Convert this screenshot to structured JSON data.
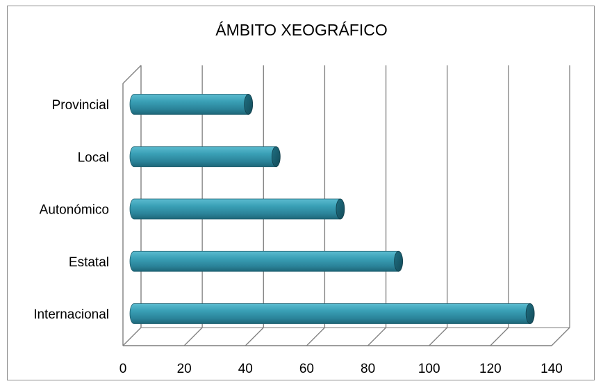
{
  "chart_data": {
    "type": "bar",
    "orientation": "horizontal",
    "style": "3d-cylinder",
    "title": "ÁMBITO XEOGRÁFICO",
    "xlabel": "",
    "ylabel": "",
    "categories": [
      "Provincial",
      "Local",
      "Autonómico",
      "Estatal",
      "Internacional"
    ],
    "values": [
      41,
      50,
      71,
      90,
      133
    ],
    "xlim": [
      0,
      140
    ],
    "xticks": [
      0,
      20,
      40,
      60,
      80,
      100,
      120,
      140
    ],
    "grid": true,
    "legend": "none",
    "colors": {
      "bar": "#2e8aa0",
      "bar_light": "#4fb3c9",
      "bar_dark": "#1b5f72",
      "grid": "#7f7f7f"
    }
  }
}
